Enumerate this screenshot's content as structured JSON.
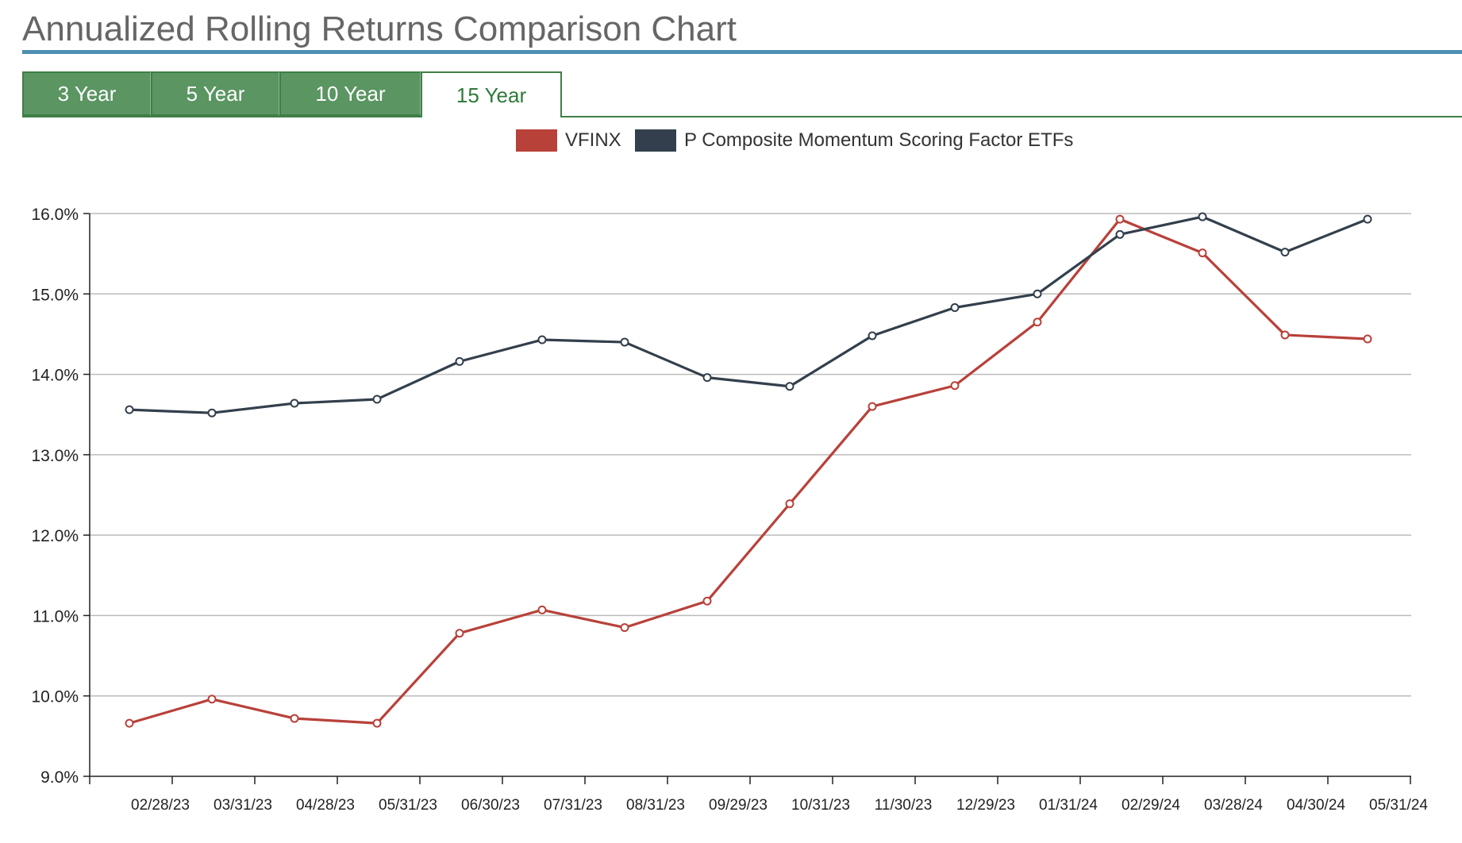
{
  "page": {
    "title": "Annualized Rolling Returns Comparison Chart"
  },
  "tabs": [
    {
      "label": "3 Year",
      "active": false
    },
    {
      "label": "5 Year",
      "active": false
    },
    {
      "label": "10 Year",
      "active": false
    },
    {
      "label": "15 Year",
      "active": true
    }
  ],
  "colors": {
    "accent_rule": "#4e8fb3",
    "tab_green": "#5a9562",
    "tab_border": "#3f7f46",
    "vfinx": "#b8413a",
    "composite": "#333f4c",
    "grid": "#bbbbbb"
  },
  "chart_data": {
    "type": "line",
    "title": "",
    "xlabel": "",
    "ylabel": "",
    "ylim": [
      9.0,
      16.0
    ],
    "y_ticks": [
      "9.0%",
      "10.0%",
      "11.0%",
      "12.0%",
      "13.0%",
      "14.0%",
      "15.0%",
      "16.0%"
    ],
    "x_ticks": [
      "02/28/23",
      "03/31/23",
      "04/28/23",
      "05/31/23",
      "06/30/23",
      "07/31/23",
      "08/31/23",
      "09/29/23",
      "10/31/23",
      "11/30/23",
      "12/29/23",
      "01/31/24",
      "02/29/24",
      "03/28/24",
      "04/30/24",
      "05/31/24"
    ],
    "grid": true,
    "legend_position": "top-center",
    "series": [
      {
        "name": "VFINX",
        "color": "#b8413a",
        "values": [
          9.66,
          9.96,
          9.72,
          9.66,
          10.78,
          11.07,
          10.85,
          11.18,
          12.39,
          13.6,
          13.86,
          14.65,
          15.93,
          15.51,
          14.49,
          14.44
        ]
      },
      {
        "name": "P Composite Momentum Scoring Factor ETFs",
        "color": "#333f4c",
        "values": [
          13.56,
          13.52,
          13.64,
          13.69,
          14.16,
          14.43,
          14.4,
          13.96,
          13.85,
          14.48,
          14.83,
          15.0,
          15.74,
          15.96,
          15.52,
          15.93
        ]
      }
    ]
  }
}
